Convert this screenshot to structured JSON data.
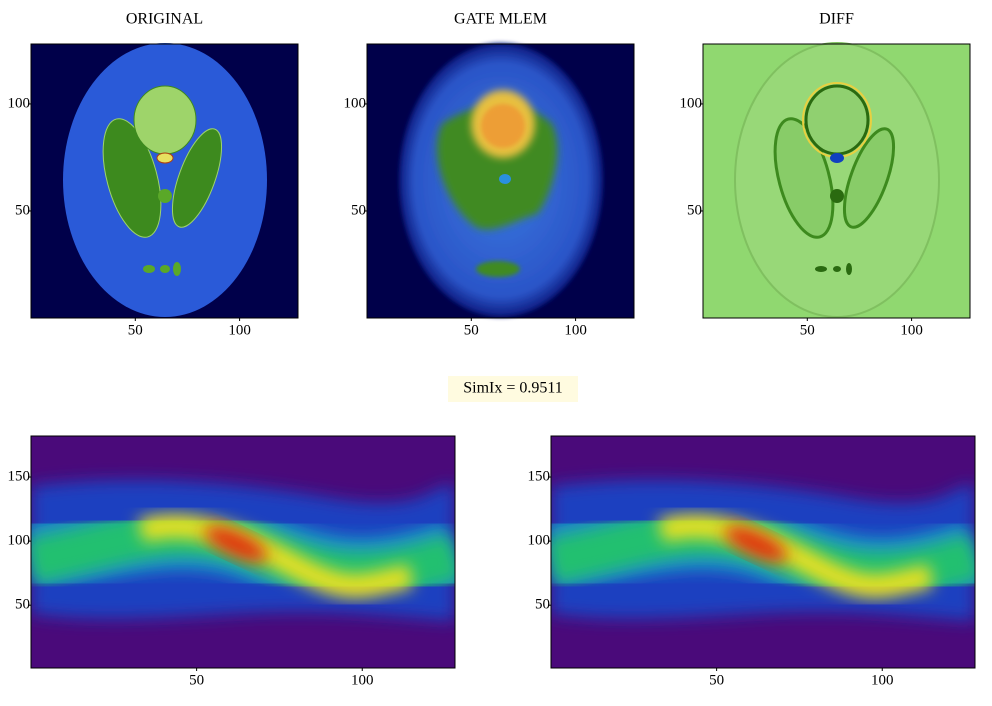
{
  "chart_data": [
    {
      "type": "image",
      "title": "ORIGINAL",
      "xlim": [
        0,
        128
      ],
      "ylim": [
        0,
        128
      ],
      "xticks": [
        50,
        100
      ],
      "yticks": [
        50,
        100
      ]
    },
    {
      "type": "image",
      "title": "GATE MLEM",
      "xlim": [
        0,
        128
      ],
      "ylim": [
        0,
        128
      ],
      "xticks": [
        50,
        100
      ],
      "yticks": [
        50,
        100
      ]
    },
    {
      "type": "image",
      "title": "DIFF",
      "xlim": [
        0,
        128
      ],
      "ylim": [
        0,
        128
      ],
      "xticks": [
        50,
        100
      ],
      "yticks": [
        50,
        100
      ]
    },
    {
      "type": "image",
      "xlim": [
        0,
        128
      ],
      "ylim": [
        1,
        182
      ],
      "xticks": [
        50,
        100
      ],
      "yticks": [
        50,
        100,
        150
      ]
    },
    {
      "type": "image",
      "xlim": [
        0,
        128
      ],
      "ylim": [
        1,
        182
      ],
      "xticks": [
        50,
        100
      ],
      "yticks": [
        50,
        100,
        150
      ]
    }
  ],
  "annotation": "SimIx = 0.9511"
}
